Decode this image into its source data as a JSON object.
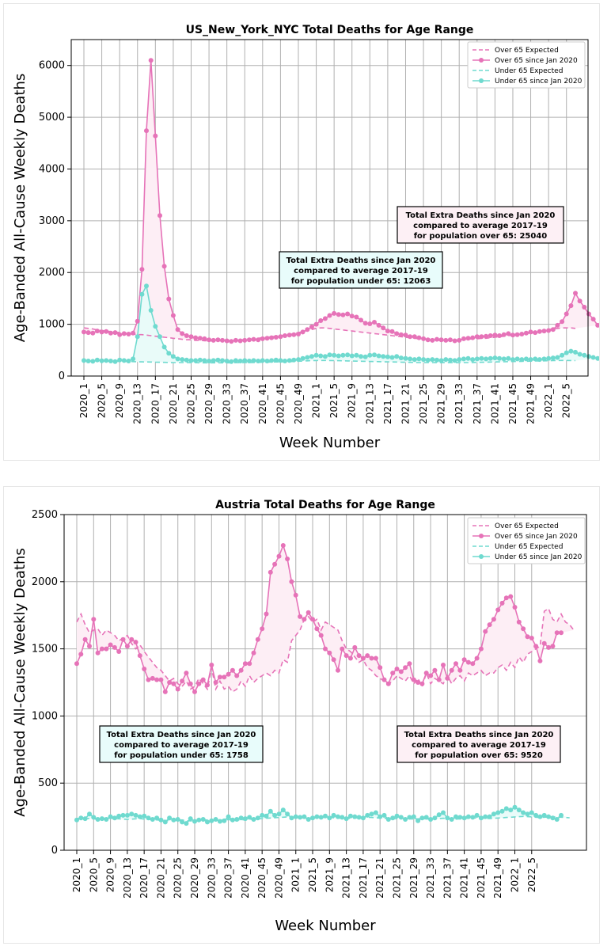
{
  "colors": {
    "over": "#e673b8",
    "under": "#6fdacf",
    "over_fill": "#fdeef5",
    "under_fill": "#e9fbf9",
    "box_over": "#fdf0f5",
    "box_under": "#e8fcfb"
  },
  "legend": [
    "Over 65 Expected",
    "Over 65 since Jan 2020",
    "Under 65 Expected",
    "Under 65 since Jan 2020"
  ],
  "chart_data": [
    {
      "type": "line",
      "title": "US_New_York_NYC Total Deaths for Age Range",
      "xlabel": "Week Number",
      "ylabel": "Age-Banded All-Cause Weekly Deaths",
      "ylim": [
        0,
        6500
      ],
      "yticks": [
        0,
        1000,
        2000,
        3000,
        4000,
        5000,
        6000
      ],
      "xticks": [
        "2020_1",
        "2020_5",
        "2020_9",
        "2020_13",
        "2020_17",
        "2020_21",
        "2020_25",
        "2020_29",
        "2020_33",
        "2020_37",
        "2020_41",
        "2020_45",
        "2020_49",
        "2021_1",
        "2021_5",
        "2021_9",
        "2021_13",
        "2021_17",
        "2021_21",
        "2021_25",
        "2021_29",
        "2021_33",
        "2021_37",
        "2021_41",
        "2021_45",
        "2021_49",
        "2022_1",
        "2022_5"
      ],
      "annotations": [
        {
          "lines": [
            "Total Extra Deaths since Jan 2020",
            "compared to average 2017-19",
            "for population under 65: 12063"
          ],
          "series": "under"
        },
        {
          "lines": [
            "Total Extra Deaths since Jan 2020",
            "compared to average 2017-19",
            "for population over 65: 25040"
          ],
          "series": "over"
        }
      ],
      "series": [
        {
          "name": "Over 65 Expected",
          "values": [
            930,
            920,
            910,
            890,
            880,
            870,
            860,
            850,
            840,
            830,
            820,
            810,
            800,
            800,
            790,
            780,
            770,
            760,
            750,
            740,
            730,
            720,
            710,
            700,
            700,
            690,
            690,
            680,
            680,
            680,
            680,
            680,
            680,
            690,
            690,
            700,
            700,
            710,
            720,
            730,
            740,
            750,
            760,
            770,
            780,
            790,
            800,
            820,
            840,
            860,
            880,
            900,
            920,
            930,
            930,
            920,
            910,
            900,
            890,
            880,
            870,
            860,
            850,
            840,
            830,
            820,
            810,
            800,
            790,
            780,
            770,
            760,
            750,
            740,
            730,
            720,
            710,
            700,
            700,
            690,
            690,
            690,
            690,
            690,
            700,
            700,
            710,
            720,
            720,
            730,
            730,
            740,
            750,
            760,
            770,
            780,
            790,
            800,
            810,
            820,
            830,
            840,
            860,
            880,
            900,
            910,
            920,
            930,
            930,
            930,
            920
          ]
        },
        {
          "name": "Over 65 since Jan 2020",
          "values": [
            850,
            840,
            830,
            870,
            850,
            860,
            830,
            840,
            800,
            820,
            810,
            830,
            1060,
            2060,
            4740,
            6100,
            4640,
            3100,
            2120,
            1490,
            1170,
            900,
            820,
            780,
            760,
            740,
            730,
            720,
            700,
            690,
            700,
            690,
            680,
            670,
            690,
            680,
            690,
            700,
            710,
            700,
            720,
            730,
            740,
            750,
            760,
            780,
            790,
            800,
            810,
            850,
            900,
            950,
            1000,
            1070,
            1110,
            1170,
            1210,
            1190,
            1180,
            1200,
            1160,
            1140,
            1080,
            1020,
            1010,
            1040,
            980,
            930,
            870,
            860,
            820,
            800,
            790,
            760,
            760,
            740,
            720,
            700,
            690,
            710,
            700,
            690,
            700,
            680,
            690,
            720,
            730,
            740,
            760,
            760,
            770,
            780,
            790,
            780,
            800,
            820,
            790,
            800,
            810,
            830,
            850,
            840,
            860,
            870,
            880,
            900,
            980,
            1050,
            1200,
            1360,
            1600,
            1450,
            1330,
            1200,
            1100,
            980
          ]
        },
        {
          "name": "Under 65 Expected",
          "values": [
            300,
            298,
            296,
            294,
            292,
            290,
            288,
            286,
            284,
            282,
            280,
            278,
            276,
            274,
            272,
            270,
            268,
            266,
            264,
            262,
            260,
            260,
            260,
            260,
            258,
            258,
            256,
            256,
            256,
            256,
            256,
            256,
            256,
            256,
            258,
            258,
            260,
            260,
            262,
            264,
            266,
            268,
            270,
            272,
            274,
            276,
            278,
            282,
            286,
            290,
            294,
            298,
            300,
            302,
            302,
            300,
            298,
            296,
            294,
            292,
            290,
            288,
            286,
            284,
            282,
            280,
            278,
            276,
            274,
            272,
            270,
            268,
            266,
            264,
            262,
            260,
            260,
            260,
            260,
            258,
            258,
            258,
            258,
            258,
            258,
            260,
            260,
            262,
            264,
            266,
            268,
            270,
            272,
            274,
            276,
            278,
            280,
            282,
            284,
            286,
            288,
            290,
            292,
            294,
            296,
            298,
            300,
            302,
            302,
            300,
            298
          ]
        },
        {
          "name": "Under 65 since Jan 2020",
          "values": [
            300,
            290,
            285,
            310,
            295,
            300,
            290,
            280,
            310,
            300,
            290,
            330,
            760,
            1580,
            1740,
            1270,
            960,
            760,
            560,
            440,
            380,
            330,
            320,
            310,
            300,
            300,
            310,
            300,
            290,
            300,
            310,
            300,
            290,
            280,
            300,
            290,
            300,
            290,
            300,
            290,
            300,
            290,
            300,
            310,
            300,
            290,
            300,
            310,
            320,
            340,
            360,
            380,
            400,
            390,
            380,
            410,
            400,
            390,
            400,
            410,
            390,
            400,
            380,
            370,
            400,
            410,
            390,
            380,
            370,
            360,
            380,
            350,
            340,
            330,
            320,
            330,
            320,
            310,
            320,
            310,
            300,
            320,
            310,
            300,
            320,
            330,
            340,
            320,
            330,
            340,
            330,
            340,
            350,
            340,
            330,
            340,
            320,
            330,
            320,
            330,
            320,
            330,
            320,
            330,
            340,
            350,
            360,
            400,
            450,
            480,
            460,
            420,
            400,
            380,
            360,
            340
          ]
        }
      ]
    },
    {
      "type": "line",
      "title": "Austria Total Deaths for Age Range",
      "xlabel": "Week Number",
      "ylabel": "Age-Banded All-Cause Weekly Deaths",
      "ylim": [
        0,
        2500
      ],
      "yticks": [
        0,
        500,
        1000,
        1500,
        2000,
        2500
      ],
      "xticks": [
        "2020_1",
        "2020_5",
        "2020_9",
        "2020_13",
        "2020_17",
        "2020_21",
        "2020_25",
        "2020_29",
        "2020_33",
        "2020_37",
        "2020_41",
        "2020_45",
        "2020_49",
        "2021_1",
        "2021_5",
        "2021_9",
        "2021_13",
        "2021_17",
        "2021_21",
        "2021_25",
        "2021_29",
        "2021_33",
        "2021_37",
        "2021_41",
        "2021_45",
        "2021_49",
        "2022_1",
        "2022_5"
      ],
      "annotations": [
        {
          "lines": [
            "Total Extra Deaths since Jan 2020",
            "compared to average 2017-19",
            "for population under 65: 1758"
          ],
          "series": "under"
        },
        {
          "lines": [
            "Total Extra Deaths since Jan 2020",
            "compared to average 2017-19",
            "for population over 65: 9520"
          ],
          "series": "over"
        }
      ],
      "series": [
        {
          "name": "Over 65 Expected",
          "values": [
            1700,
            1760,
            1680,
            1620,
            1640,
            1650,
            1600,
            1640,
            1620,
            1600,
            1560,
            1580,
            1600,
            1540,
            1500,
            1530,
            1480,
            1440,
            1400,
            1360,
            1340,
            1300,
            1260,
            1280,
            1240,
            1220,
            1260,
            1200,
            1220,
            1280,
            1240,
            1200,
            1360,
            1200,
            1260,
            1200,
            1220,
            1180,
            1200,
            1260,
            1220,
            1300,
            1250,
            1280,
            1300,
            1320,
            1300,
            1340,
            1320,
            1420,
            1400,
            1560,
            1600,
            1640,
            1720,
            1740,
            1700,
            1720,
            1640,
            1700,
            1680,
            1660,
            1640,
            1560,
            1500,
            1480,
            1440,
            1400,
            1420,
            1360,
            1340,
            1300,
            1280,
            1260,
            1240,
            1260,
            1300,
            1280,
            1260,
            1300,
            1240,
            1280,
            1220,
            1320,
            1240,
            1280,
            1260,
            1240,
            1300,
            1240,
            1280,
            1300,
            1260,
            1320,
            1300,
            1320,
            1340,
            1300,
            1320,
            1320,
            1360,
            1380,
            1340,
            1400,
            1360,
            1440,
            1400,
            1460,
            1480,
            1500,
            1520,
            1780,
            1800,
            1720,
            1700,
            1760,
            1700,
            1680,
            1640
          ]
        },
        {
          "name": "Over 65 since Jan 2020",
          "values": [
            1390,
            1460,
            1570,
            1520,
            1720,
            1470,
            1500,
            1500,
            1530,
            1510,
            1480,
            1570,
            1520,
            1570,
            1550,
            1450,
            1350,
            1270,
            1280,
            1270,
            1270,
            1180,
            1250,
            1240,
            1200,
            1260,
            1320,
            1240,
            1180,
            1240,
            1270,
            1230,
            1380,
            1250,
            1290,
            1290,
            1310,
            1340,
            1300,
            1340,
            1390,
            1390,
            1470,
            1570,
            1650,
            1760,
            2070,
            2130,
            2190,
            2270,
            2170,
            2000,
            1900,
            1740,
            1720,
            1770,
            1720,
            1650,
            1600,
            1500,
            1470,
            1420,
            1340,
            1500,
            1450,
            1430,
            1510,
            1450,
            1430,
            1450,
            1430,
            1430,
            1360,
            1270,
            1240,
            1320,
            1350,
            1330,
            1360,
            1390,
            1270,
            1250,
            1240,
            1320,
            1300,
            1340,
            1270,
            1380,
            1280,
            1340,
            1390,
            1340,
            1420,
            1400,
            1390,
            1430,
            1500,
            1630,
            1680,
            1720,
            1790,
            1840,
            1880,
            1890,
            1810,
            1700,
            1650,
            1590,
            1580,
            1520,
            1410,
            1540,
            1510,
            1520,
            1620,
            1620
          ]
        },
        {
          "name": "Under 65 Expected",
          "values": [
            235,
            238,
            240,
            236,
            234,
            232,
            236,
            240,
            238,
            236,
            234,
            232,
            230,
            232,
            234,
            236,
            232,
            230,
            228,
            226,
            224,
            222,
            220,
            222,
            224,
            226,
            220,
            218,
            220,
            222,
            224,
            226,
            224,
            222,
            224,
            226,
            228,
            226,
            224,
            226,
            228,
            230,
            232,
            234,
            236,
            238,
            240,
            242,
            244,
            246,
            248,
            246,
            244,
            242,
            240,
            238,
            240,
            242,
            244,
            246,
            244,
            242,
            240,
            238,
            236,
            238,
            240,
            242,
            244,
            246,
            244,
            242,
            240,
            238,
            236,
            234,
            236,
            238,
            236,
            234,
            232,
            234,
            236,
            234,
            232,
            234,
            236,
            238,
            236,
            234,
            232,
            234,
            236,
            238,
            240,
            242,
            240,
            238,
            236,
            238,
            240,
            242,
            244,
            246,
            248,
            250,
            252,
            250,
            248,
            246,
            244,
            246,
            248,
            250,
            248,
            246,
            244,
            242
          ]
        },
        {
          "name": "Under 65 since Jan 2020",
          "values": [
            225,
            240,
            235,
            270,
            245,
            230,
            235,
            230,
            250,
            240,
            255,
            260,
            260,
            270,
            260,
            250,
            255,
            240,
            230,
            240,
            225,
            210,
            240,
            225,
            230,
            210,
            200,
            235,
            215,
            225,
            230,
            210,
            220,
            230,
            215,
            220,
            250,
            225,
            230,
            240,
            235,
            245,
            230,
            240,
            260,
            255,
            290,
            260,
            270,
            300,
            270,
            240,
            250,
            245,
            250,
            230,
            240,
            250,
            245,
            255,
            240,
            260,
            250,
            245,
            235,
            255,
            250,
            245,
            240,
            260,
            270,
            280,
            250,
            260,
            230,
            240,
            255,
            245,
            230,
            245,
            250,
            220,
            240,
            245,
            230,
            240,
            265,
            280,
            240,
            230,
            250,
            245,
            240,
            250,
            245,
            260,
            240,
            250,
            250,
            270,
            280,
            290,
            310,
            300,
            320,
            300,
            280,
            270,
            280,
            260,
            250,
            260,
            250,
            240,
            230,
            260
          ]
        }
      ]
    }
  ]
}
